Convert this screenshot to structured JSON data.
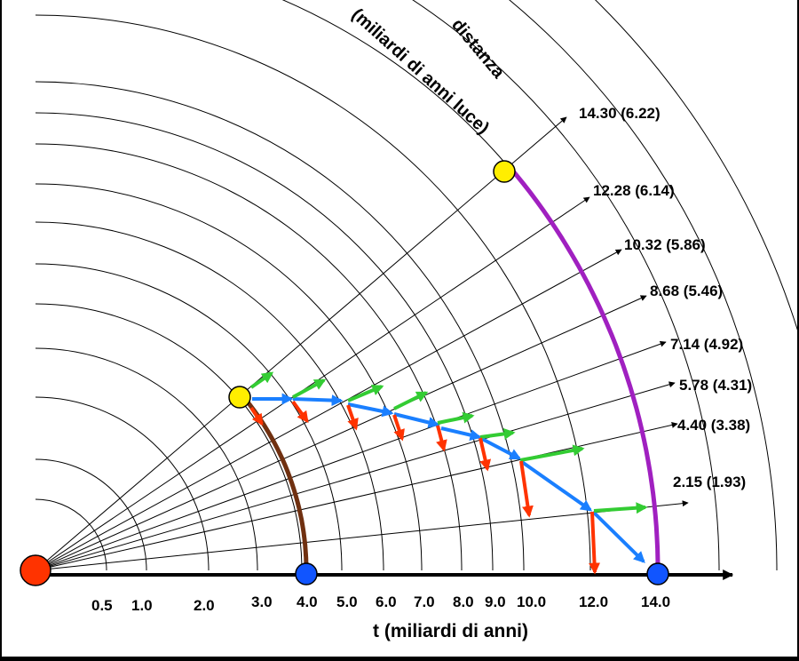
{
  "diagram": {
    "axis_title": "t (miliardi di anni)",
    "curve_title_line1": "distanza",
    "curve_title_line2": "(miliardi di anni luce)",
    "tick_labels": [
      "0.5",
      "1.0",
      "2.0",
      "3.0",
      "4.0",
      "5.0",
      "6.0",
      "7.0",
      "8.0",
      "9.0",
      "10.0",
      "12.0",
      "14.0"
    ],
    "ray_labels": [
      "14.30 (6.22)",
      "12.28 (6.14)",
      "10.32 (5.86)",
      "8.68 (5.46)",
      "7.14 (4.92)",
      "5.78 (4.31)",
      "4.40 (3.38)",
      "2.15 (1.93)"
    ],
    "colors": {
      "background": "#ffffff",
      "frame": "#000000",
      "grid": "#000000",
      "origin_dot": "#ff3300",
      "blue_marker": "#1155ff",
      "yellow_marker": "#ffee00",
      "blue_arrow": "#1a7fff",
      "green_arrow": "#33cc33",
      "red_arrow": "#ff3300",
      "brown_arc": "#703010",
      "purple_arc": "#a020c0"
    }
  }
}
